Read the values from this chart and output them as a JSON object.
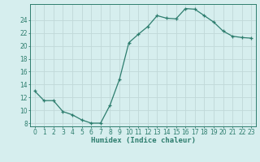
{
  "x": [
    0,
    1,
    2,
    3,
    4,
    5,
    6,
    7,
    8,
    9,
    10,
    11,
    12,
    13,
    14,
    15,
    16,
    17,
    18,
    19,
    20,
    21,
    22,
    23
  ],
  "y": [
    13,
    11.5,
    11.5,
    9.8,
    9.3,
    8.5,
    8.0,
    8.0,
    10.8,
    14.8,
    20.5,
    21.8,
    23.0,
    24.7,
    24.3,
    24.2,
    25.8,
    25.7,
    24.7,
    23.7,
    22.3,
    21.5,
    21.3,
    21.2
  ],
  "xlabel": "Humidex (Indice chaleur)",
  "xlim": [
    -0.5,
    23.5
  ],
  "ylim": [
    7.5,
    26.5
  ],
  "yticks": [
    8,
    10,
    12,
    14,
    16,
    18,
    20,
    22,
    24
  ],
  "xticks": [
    0,
    1,
    2,
    3,
    4,
    5,
    6,
    7,
    8,
    9,
    10,
    11,
    12,
    13,
    14,
    15,
    16,
    17,
    18,
    19,
    20,
    21,
    22,
    23
  ],
  "line_color": "#2d7d6e",
  "marker": "+",
  "bg_color": "#d6eeee",
  "grid_color": "#c0d8d8",
  "axis_color": "#2d7d6e",
  "label_fontsize": 6.5,
  "tick_fontsize": 5.5
}
